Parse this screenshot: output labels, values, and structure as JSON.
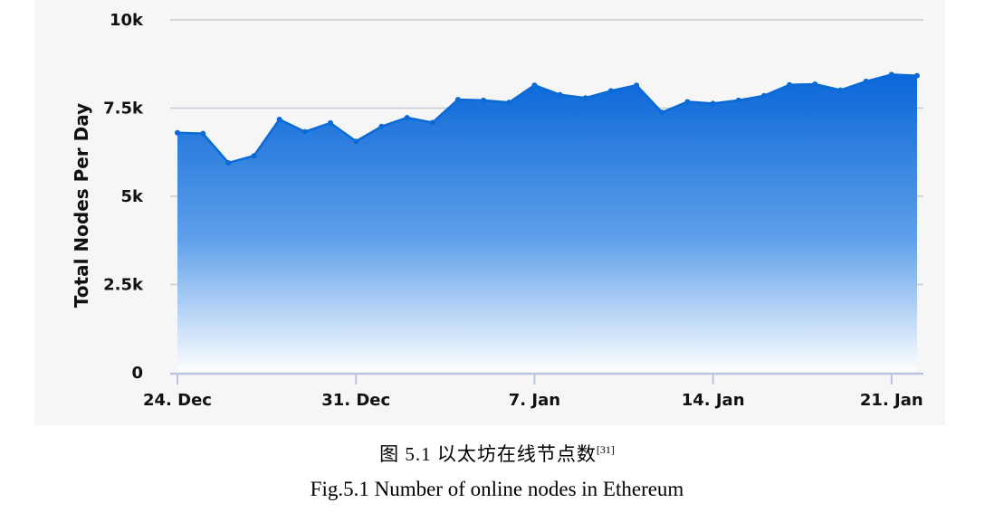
{
  "chart_data": {
    "type": "area",
    "title": "",
    "xlabel": "",
    "ylabel": "Total Nodes Per Day",
    "ylim": [
      0,
      10000
    ],
    "yticks": [
      {
        "value": 0,
        "label": "0"
      },
      {
        "value": 2500,
        "label": "2.5k"
      },
      {
        "value": 5000,
        "label": "5k"
      },
      {
        "value": 7500,
        "label": "7.5k"
      },
      {
        "value": 10000,
        "label": "10k"
      }
    ],
    "xticks": [
      {
        "day": 0,
        "label": "24. Dec"
      },
      {
        "day": 7,
        "label": "31. Dec"
      },
      {
        "day": 14,
        "label": "7. Jan"
      },
      {
        "day": 21,
        "label": "14. Jan"
      },
      {
        "day": 28,
        "label": "21. Jan"
      }
    ],
    "x": [
      "24. Dec",
      "25. Dec",
      "26. Dec",
      "27. Dec",
      "28. Dec",
      "29. Dec",
      "30. Dec",
      "31. Dec",
      "1. Jan",
      "2. Jan",
      "3. Jan",
      "4. Jan",
      "5. Jan",
      "6. Jan",
      "7. Jan",
      "8. Jan",
      "9. Jan",
      "10. Jan",
      "11. Jan",
      "12. Jan",
      "13. Jan",
      "14. Jan",
      "15. Jan",
      "16. Jan",
      "17. Jan",
      "18. Jan",
      "19. Jan",
      "20. Jan",
      "21. Jan",
      "22. Jan"
    ],
    "series": [
      {
        "values": [
          6800,
          6780,
          5950,
          6150,
          7180,
          6830,
          7080,
          6560,
          6980,
          7230,
          7090,
          7740,
          7720,
          7660,
          8150,
          7880,
          7790,
          7990,
          8150,
          7380,
          7680,
          7630,
          7720,
          7850,
          8160,
          8180,
          8010,
          8260,
          8450,
          8420
        ]
      }
    ],
    "grid": true,
    "legend": "none",
    "colors": {
      "line": "#0a6ad6",
      "area_top": "#0a66d8",
      "area_bottom": "#ffffff",
      "grid": "#c8cbd6",
      "axis": "#b9c4de",
      "panel": "#f6f6f6"
    }
  },
  "captions": {
    "cn_text": "图 5.1 以太坊在线节点数",
    "cn_ref": "[31]",
    "en": "Fig.5.1 Number of online nodes in Ethereum"
  }
}
